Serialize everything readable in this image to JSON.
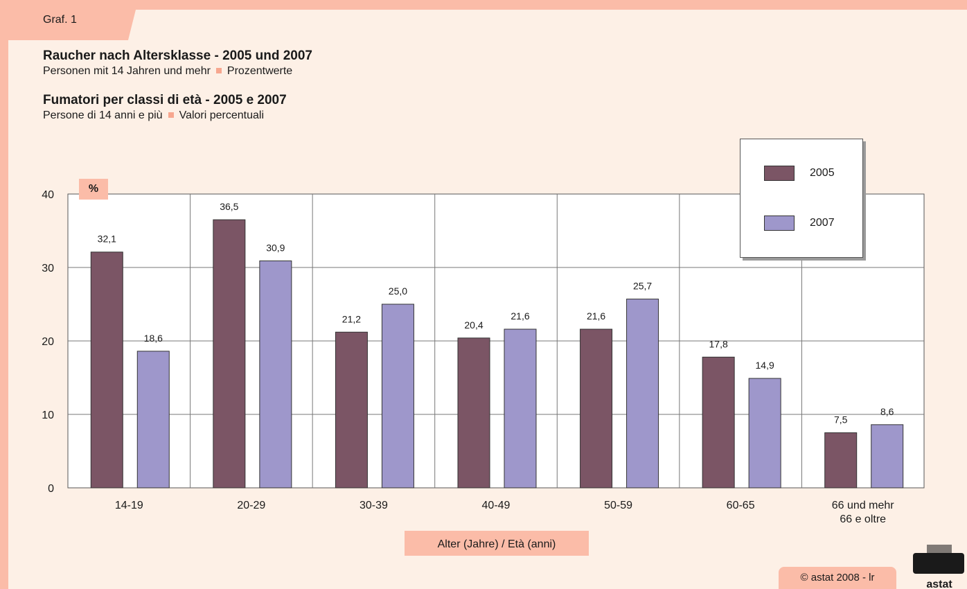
{
  "tab_label": "Graf. 1",
  "title_de": "Raucher nach Altersklasse - 2005 und 2007",
  "subtitle_de_part1": "Personen mit 14 Jahren und mehr",
  "subtitle_de_part2": "Prozentwerte",
  "title_it": "Fumatori per classi di età - 2005 e 2007",
  "subtitle_it_part1": "Persone di 14 anni e più",
  "subtitle_it_part2": "Valori percentuali",
  "unit_label": "%",
  "xaxis_title": "Alter (Jahre) / Età (anni)",
  "copyright": "© astat 2008 - lr",
  "logo_text": "astat",
  "chart_data": {
    "type": "bar",
    "categories": [
      "14-19",
      "20-29",
      "30-39",
      "40-49",
      "50-59",
      "60-65",
      "66 und mehr\n66 e oltre"
    ],
    "series": [
      {
        "name": "2005",
        "color": "#7b5565",
        "values": [
          32.1,
          36.5,
          21.2,
          20.4,
          21.6,
          17.8,
          7.5
        ]
      },
      {
        "name": "2007",
        "color": "#9e97cb",
        "values": [
          18.6,
          30.9,
          25.0,
          21.6,
          25.7,
          14.9,
          8.6
        ]
      }
    ],
    "ylim": [
      0,
      40
    ],
    "yticks": [
      0,
      10,
      20,
      30,
      40
    ],
    "grid": true,
    "legend_position": "top-right",
    "decimal_separator": ","
  }
}
